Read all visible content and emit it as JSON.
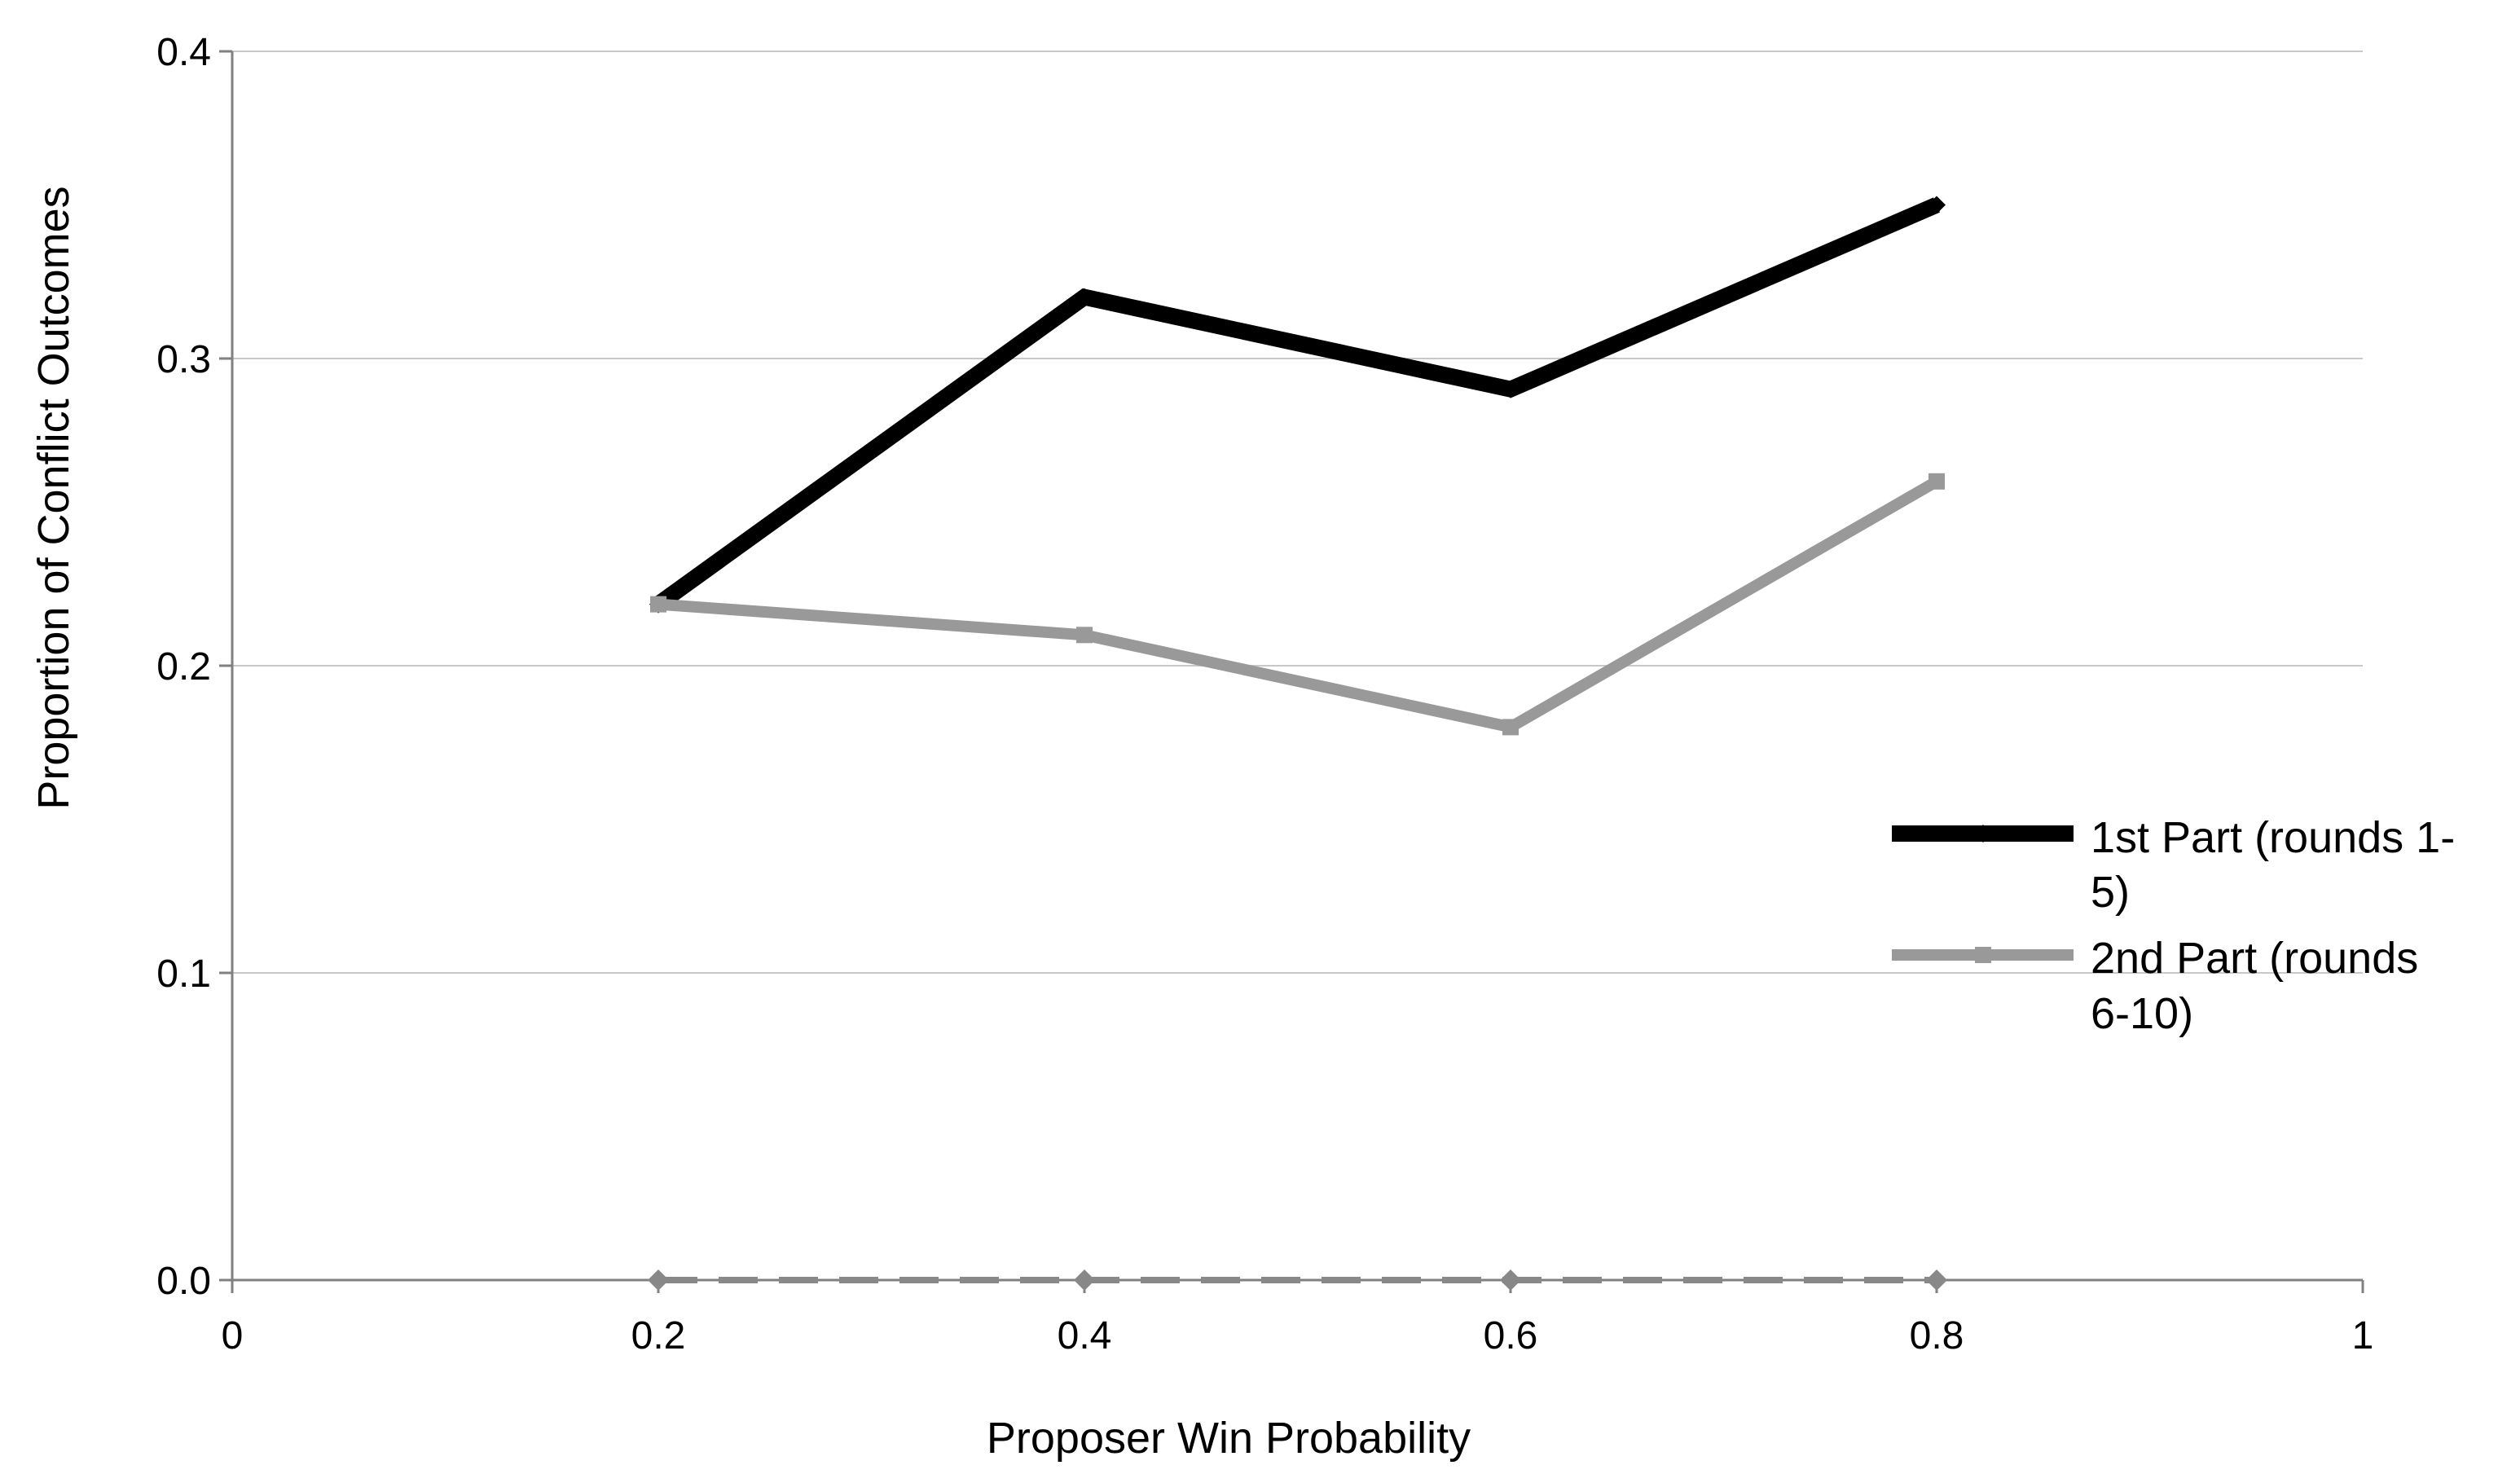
{
  "chart_data": {
    "type": "line",
    "title": "",
    "xlabel": "Proposer Win Probability",
    "ylabel": "Proportion of Conflict Outcomes",
    "xlim": [
      0,
      1
    ],
    "ylim": [
      0,
      0.4
    ],
    "x_ticks": [
      0,
      0.2,
      0.4,
      0.6,
      0.8,
      1
    ],
    "x_tick_labels": [
      "0",
      "0.2",
      "0.4",
      "0.6",
      "0.8",
      "1"
    ],
    "y_ticks": [
      0,
      0.1,
      0.2,
      0.3,
      0.4
    ],
    "y_tick_labels": [
      "0.0",
      "0.1",
      "0.2",
      "0.3",
      "0.4"
    ],
    "grid": "horizontal",
    "legend_position": "right",
    "x": [
      0.2,
      0.4,
      0.6,
      0.8
    ],
    "series": [
      {
        "name": "1st Part (rounds 1-5)",
        "legend_lines": [
          "1st Part (rounds 1-",
          "5)"
        ],
        "values": [
          0.22,
          0.32,
          0.29,
          0.35
        ],
        "color": "#000000",
        "marker": "diamond",
        "style": "solid",
        "in_legend": true
      },
      {
        "name": "2nd Part (rounds 6-10)",
        "legend_lines": [
          "2nd Part (rounds",
          "6-10)"
        ],
        "values": [
          0.22,
          0.21,
          0.18,
          0.26
        ],
        "color": "#999999",
        "marker": "square",
        "style": "solid",
        "in_legend": true
      },
      {
        "values": [
          0,
          0,
          0,
          0
        ],
        "color": "#888888",
        "marker": "diamond",
        "style": "dashed",
        "in_legend": false
      }
    ]
  }
}
